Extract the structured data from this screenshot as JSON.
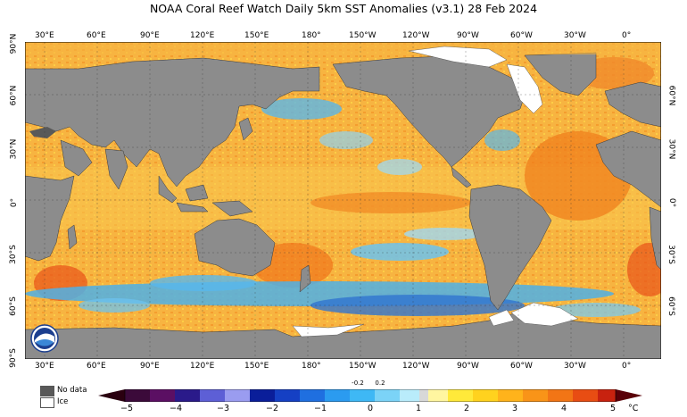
{
  "title": "NOAA Coral Reef Watch Daily 5km SST Anomalies  (v3.1)   28 Feb 2024",
  "lon_labels": [
    "30°E",
    "60°E",
    "90°E",
    "120°E",
    "150°E",
    "180°",
    "150°W",
    "120°W",
    "90°W",
    "60°W",
    "30°W",
    "0°"
  ],
  "lat_labels_left": [
    "90°N",
    "60°N",
    "30°N",
    "0°",
    "30°S",
    "60°S",
    "90°S"
  ],
  "lat_labels_right": [
    "60°N",
    "30°N",
    "0°",
    "30°S",
    "60°S"
  ],
  "legend": {
    "nodata": "No data",
    "ice": "Ice"
  },
  "colorbar": {
    "ticks": [
      "−5",
      "−4",
      "−3",
      "−2",
      "−1",
      "0",
      "1",
      "2",
      "3",
      "4",
      "5"
    ],
    "small_ticks": [
      "-0.2",
      "0.2"
    ],
    "unit": "°C"
  },
  "colors": {
    "land": "#8c8c8c",
    "nodata": "#595959",
    "ocean_warm": "#f7a93b",
    "ocean_cool": "#5ab6e8"
  },
  "logo_icon": "noaa-logo-icon"
}
